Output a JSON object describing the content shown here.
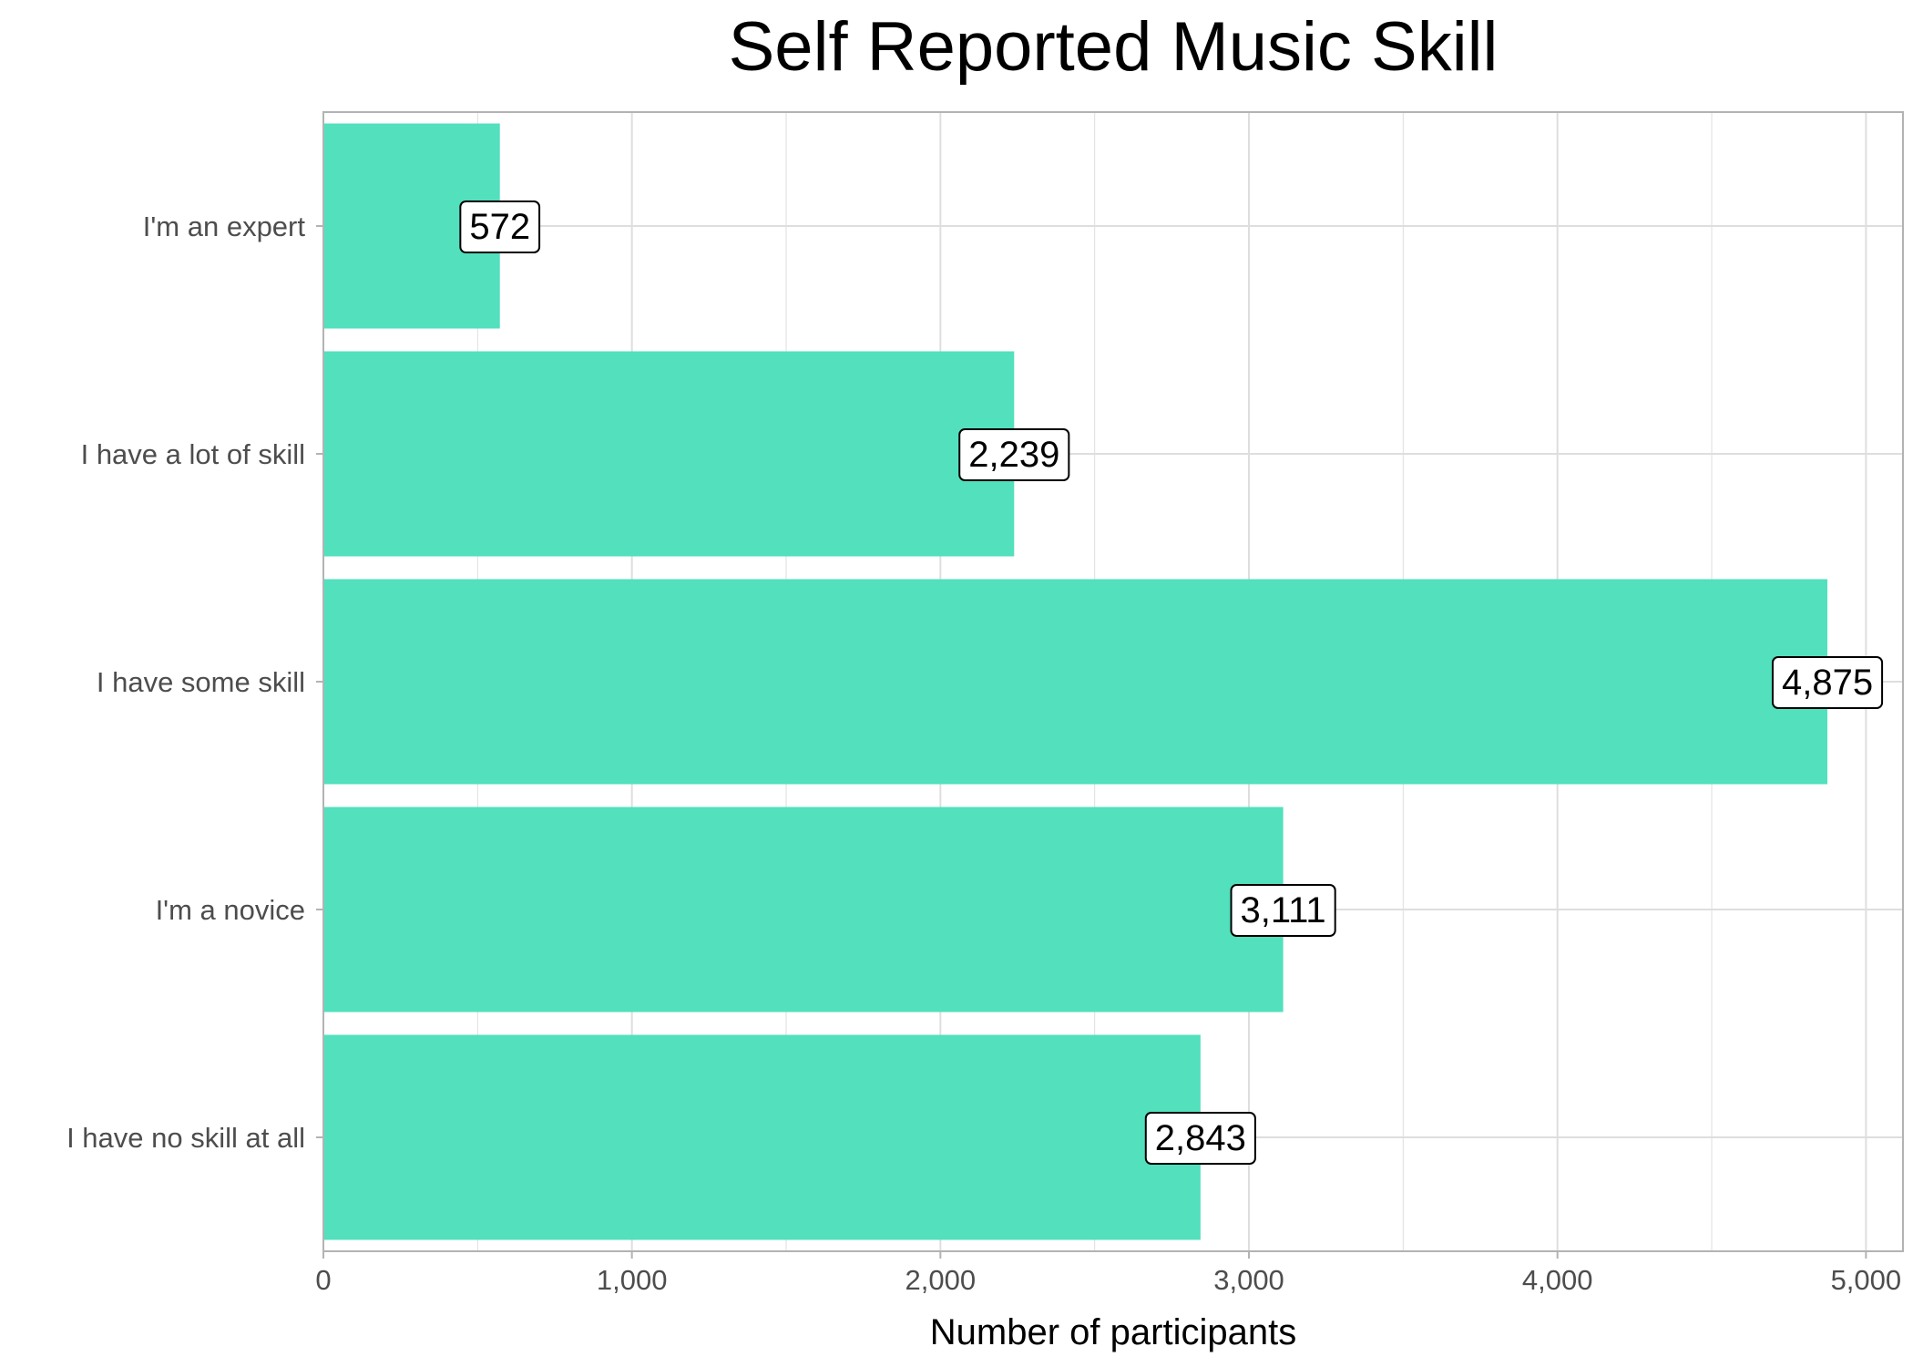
{
  "chart_data": {
    "type": "bar",
    "orientation": "horizontal",
    "title": "Self Reported Music Skill",
    "xlabel": "Number of participants",
    "ylabel": "",
    "categories": [
      "I'm an expert",
      "I have a lot of skill",
      "I have some skill",
      "I'm a novice",
      "I have no skill at all"
    ],
    "values": [
      572,
      2239,
      4875,
      3111,
      2843
    ],
    "value_labels": [
      "572",
      "2,239",
      "4,875",
      "3,111",
      "2,843"
    ],
    "xlim": [
      0,
      5120
    ],
    "x_ticks": [
      0,
      1000,
      2000,
      3000,
      4000,
      5000
    ],
    "x_tick_labels": [
      "0",
      "1,000",
      "2,000",
      "3,000",
      "4,000",
      "5,000"
    ],
    "grid": true,
    "legend": "none",
    "colors": {
      "bar": "#52e0bd",
      "grid": "#dedede",
      "axis_text": "#4d4d4d",
      "panel_border": "#b3b3b3"
    }
  }
}
